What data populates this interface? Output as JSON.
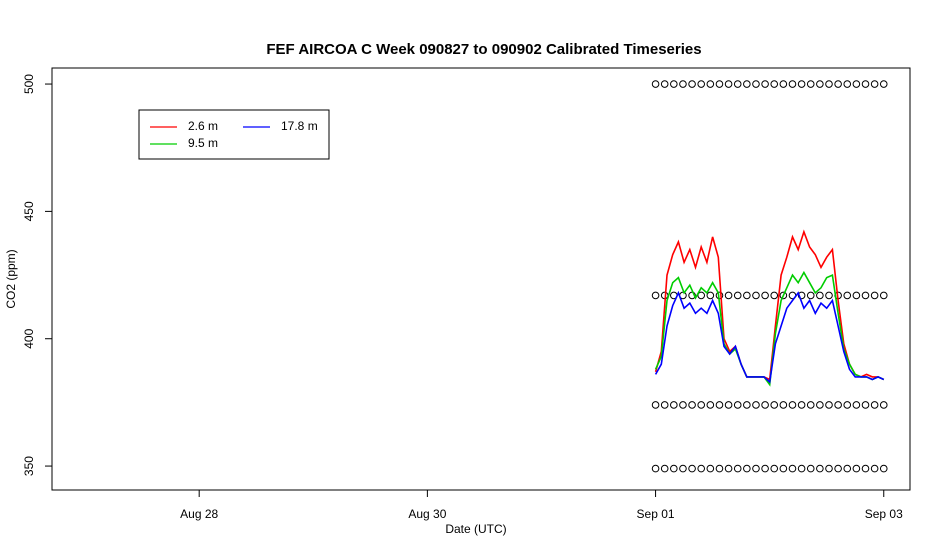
{
  "chart_data": {
    "type": "line",
    "title": "FEF AIRCOA C  Week 090827 to 090902  Calibrated Timeseries",
    "xlabel": "Date (UTC)",
    "ylabel": "CO2 (ppm)",
    "xlim": [
      26.71,
      34.23
    ],
    "ylim": [
      340.6,
      506.3
    ],
    "xticks": [
      {
        "value": 28,
        "label": "Aug 28"
      },
      {
        "value": 30,
        "label": "Aug 30"
      },
      {
        "value": 32,
        "label": "Sep 01"
      },
      {
        "value": 34,
        "label": "Sep 03"
      }
    ],
    "yticks": [
      350,
      400,
      450,
      500
    ],
    "legend": "topleft",
    "x": [
      32,
      32.05,
      32.1,
      32.15,
      32.2,
      32.25,
      32.3,
      32.35,
      32.4,
      32.45,
      32.5,
      32.55,
      32.6,
      32.65,
      32.7,
      32.75,
      32.8,
      32.85,
      32.9,
      32.95,
      33,
      33.05,
      33.1,
      33.15,
      33.2,
      33.25,
      33.3,
      33.35,
      33.4,
      33.45,
      33.5,
      33.55,
      33.6,
      33.65,
      33.7,
      33.75,
      33.8,
      33.85,
      33.9,
      33.95,
      34
    ],
    "series": [
      {
        "name": "2.6 m",
        "color": "#ff0000",
        "values": [
          387,
          395,
          425,
          433,
          438,
          430,
          435,
          428,
          436,
          430,
          440,
          432,
          400,
          395,
          397,
          390,
          385,
          385,
          385,
          385,
          384,
          405,
          425,
          432,
          440,
          435,
          442,
          436,
          433,
          428,
          432,
          435,
          415,
          398,
          390,
          386,
          385,
          386,
          385,
          385,
          384
        ]
      },
      {
        "name": "9.5 m",
        "color": "#00cd00",
        "values": [
          388,
          393,
          415,
          422,
          424,
          418,
          421,
          416,
          420,
          418,
          422,
          418,
          398,
          394,
          396,
          390,
          385,
          385,
          385,
          385,
          382,
          402,
          415,
          420,
          425,
          422,
          426,
          422,
          418,
          420,
          424,
          425,
          410,
          396,
          390,
          386,
          385,
          385,
          384,
          385,
          384
        ]
      },
      {
        "name": "17.8 m",
        "color": "#0000ff",
        "values": [
          386,
          390,
          405,
          413,
          418,
          412,
          414,
          410,
          412,
          410,
          415,
          410,
          397,
          394,
          397,
          390,
          385,
          385,
          385,
          385,
          383,
          398,
          405,
          412,
          415,
          418,
          412,
          415,
          410,
          414,
          412,
          415,
          405,
          395,
          388,
          385,
          385,
          385,
          384,
          385,
          384
        ]
      }
    ],
    "points": [
      {
        "color": "#000000",
        "x": [
          32,
          32.08,
          32.16,
          32.24,
          32.32,
          32.4,
          32.48,
          32.56,
          32.64,
          32.72,
          32.8,
          32.88,
          32.96,
          33.04,
          33.12,
          33.2,
          33.28,
          33.36,
          33.44,
          33.52,
          33.6,
          33.68,
          33.76,
          33.84,
          33.92,
          34
        ],
        "values": [
          500,
          500,
          500,
          500,
          500,
          500,
          500,
          500,
          500,
          500,
          500,
          500,
          500,
          500,
          500,
          500,
          500,
          500,
          500,
          500,
          500,
          500,
          500,
          500,
          500,
          500
        ]
      },
      {
        "color": "#000000",
        "x": [
          32,
          32.08,
          32.16,
          32.24,
          32.32,
          32.4,
          32.48,
          32.56,
          32.64,
          32.72,
          32.8,
          32.88,
          32.96,
          33.04,
          33.12,
          33.2,
          33.28,
          33.36,
          33.44,
          33.52,
          33.6,
          33.68,
          33.76,
          33.84,
          33.92,
          34
        ],
        "values": [
          417,
          417,
          417,
          417,
          417,
          417,
          417,
          417,
          417,
          417,
          417,
          417,
          417,
          417,
          417,
          417,
          417,
          417,
          417,
          417,
          417,
          417,
          417,
          417,
          417,
          417
        ]
      },
      {
        "color": "#000000",
        "x": [
          32,
          32.08,
          32.16,
          32.24,
          32.32,
          32.4,
          32.48,
          32.56,
          32.64,
          32.72,
          32.8,
          32.88,
          32.96,
          33.04,
          33.12,
          33.2,
          33.28,
          33.36,
          33.44,
          33.52,
          33.6,
          33.68,
          33.76,
          33.84,
          33.92,
          34
        ],
        "values": [
          374,
          374,
          374,
          374,
          374,
          374,
          374,
          374,
          374,
          374,
          374,
          374,
          374,
          374,
          374,
          374,
          374,
          374,
          374,
          374,
          374,
          374,
          374,
          374,
          374,
          374
        ]
      },
      {
        "color": "#000000",
        "x": [
          32,
          32.08,
          32.16,
          32.24,
          32.32,
          32.4,
          32.48,
          32.56,
          32.64,
          32.72,
          32.8,
          32.88,
          32.96,
          33.04,
          33.12,
          33.2,
          33.28,
          33.36,
          33.44,
          33.52,
          33.6,
          33.68,
          33.76,
          33.84,
          33.92,
          34
        ],
        "values": [
          349,
          349,
          349,
          349,
          349,
          349,
          349,
          349,
          349,
          349,
          349,
          349,
          349,
          349,
          349,
          349,
          349,
          349,
          349,
          349,
          349,
          349,
          349,
          349,
          349,
          349
        ]
      }
    ]
  }
}
